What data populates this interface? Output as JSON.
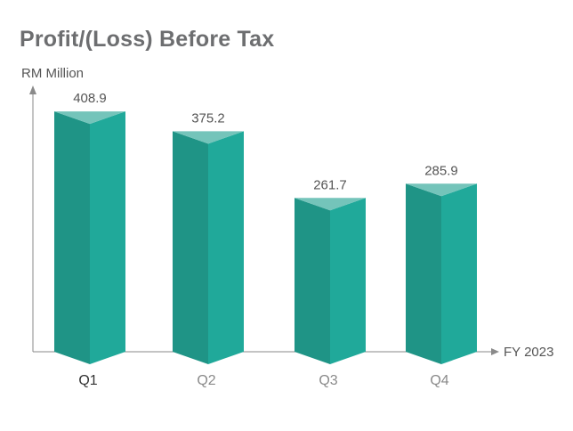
{
  "title": "Profit/(Loss) Before Tax",
  "ylabel": "RM Million",
  "xlabel": "FY 2023",
  "colors": {
    "bar_left": "#1f9486",
    "bar_right": "#20a99a",
    "bar_top": "#74c4ba",
    "axis": "#8a8a8a",
    "category_first": "#333333",
    "category_rest": "#8a8a8a"
  },
  "chart_data": {
    "type": "bar",
    "title": "Profit/(Loss) Before Tax",
    "ylabel": "RM Million",
    "xlabel": "FY 2023",
    "categories": [
      "Q1",
      "Q2",
      "Q3",
      "Q4"
    ],
    "values": [
      408.9,
      375.2,
      261.7,
      285.9
    ],
    "value_labels": [
      "408.9",
      "375.2",
      "261.7",
      "285.9"
    ],
    "ylim": [
      0,
      450
    ],
    "grid": false,
    "legend": "none"
  }
}
